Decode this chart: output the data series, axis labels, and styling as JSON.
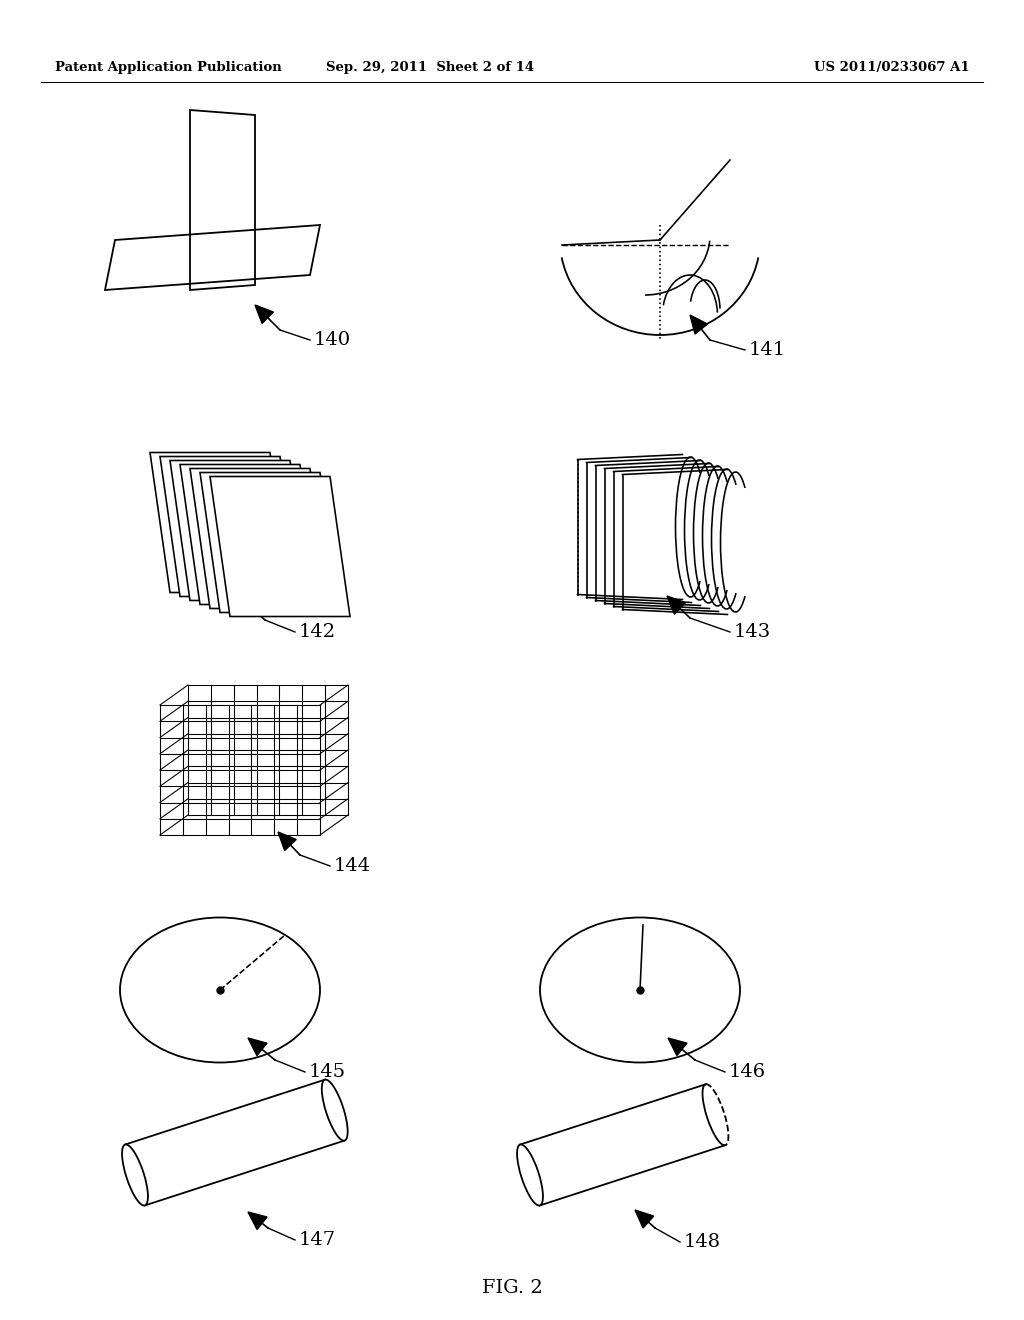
{
  "bg_color": "#ffffff",
  "line_color": "#000000",
  "header_left": "Patent Application Publication",
  "header_mid": "Sep. 29, 2011  Sheet 2 of 14",
  "header_right": "US 2011/0233067 A1",
  "footer": "FIG. 2"
}
